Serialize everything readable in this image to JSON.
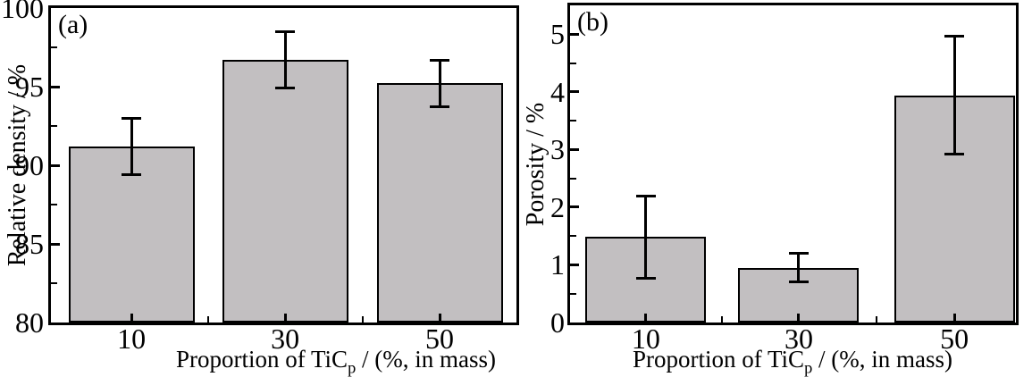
{
  "figure": {
    "background": "#ffffff",
    "bar_fill": "#c2bfc1",
    "bar_border": "#000000",
    "axis_color": "#000000",
    "text_color": "#000000"
  },
  "chart_data": [
    {
      "type": "bar",
      "panel_label": "(a)",
      "categories": [
        "10",
        "30",
        "50"
      ],
      "values": [
        91.2,
        96.7,
        95.2
      ],
      "errors": [
        1.8,
        1.8,
        1.5
      ],
      "title": "",
      "ylabel": "Relative density / %",
      "xlabel_main": "Proportion of TiC",
      "xlabel_sub": "p",
      "xlabel_rest": " / (%, in mass)",
      "ylim": [
        80,
        100
      ],
      "yticks": [
        80,
        85,
        90,
        95,
        100
      ],
      "ytick_labels": [
        "80",
        "85",
        "90",
        "95",
        "100"
      ],
      "yminor_step": 2.5,
      "grid": "off",
      "legend": "none"
    },
    {
      "type": "bar",
      "panel_label": "(b)",
      "categories": [
        "10",
        "30",
        "50"
      ],
      "values": [
        1.48,
        0.95,
        3.94
      ],
      "errors": [
        0.72,
        0.25,
        1.02
      ],
      "title": "",
      "ylabel": "Porosity / %",
      "xlabel_main": "Proportion of TiC",
      "xlabel_sub": "p",
      "xlabel_rest": " / (%, in mass)",
      "ylim": [
        0,
        5.5
      ],
      "yticks": [
        0,
        1,
        2,
        3,
        4,
        5
      ],
      "ytick_labels": [
        "0",
        "1",
        "2",
        "3",
        "4",
        "5"
      ],
      "yminor_step": 0.5,
      "grid": "off",
      "legend": "none"
    }
  ]
}
